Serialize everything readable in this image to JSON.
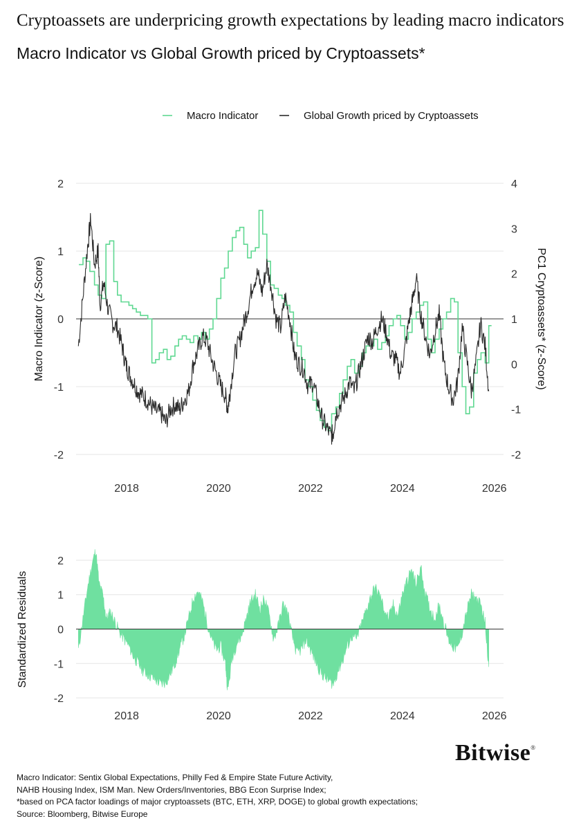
{
  "headline": "Cryptoassets are underpricing growth expectations by leading macro indicators",
  "subtitle": "Macro Indicator vs Global Growth priced by Cryptoassets*",
  "brand": {
    "name": "Bitwise",
    "mark": "®"
  },
  "colors": {
    "macro": "#5fd891",
    "crypto": "#2b2b2b",
    "residual": "#6fe0a0",
    "grid": "#e6e6e6",
    "zero": "#333333"
  },
  "footnotes": [
    "Macro Indicator: Sentix Global Expectations, Philly Fed & Empire State Future Activity,",
    "NAHB Housing Index, ISM Man. New Orders/Inventories, BBG Econ Surprise Index;",
    "*based on PCA factor loadings of major cryptoassets (BTC, ETH, XRP, DOGE) to global growth expectations;",
    "Source: Bloomberg, Bitwise Europe"
  ],
  "chart_data": [
    {
      "type": "line",
      "title": "Macro Indicator vs Global Growth priced by Cryptoassets*",
      "legend": [
        "Macro Indicator",
        "Global Growth priced by Cryptoassets"
      ],
      "legend_position": "top",
      "x_ticks": [
        "2018",
        "2020",
        "2022",
        "2024",
        "2026"
      ],
      "x_tick_values": [
        2018,
        2020,
        2022,
        2024,
        2026
      ],
      "xlim": [
        2016.9,
        2026.2
      ],
      "y_left": {
        "label": "Macro Indicator (z-Score)",
        "ticks": [
          "2",
          "1",
          "0",
          "-1",
          "-2"
        ],
        "tick_values": [
          2,
          1,
          0,
          -1,
          -2
        ],
        "range": [
          -2,
          2
        ]
      },
      "y_right": {
        "label": "PC1 Cryptoassets* (z-Score)",
        "ticks": [
          "4",
          "3",
          "2",
          "1",
          "0",
          "-1",
          "-2"
        ],
        "tick_values": [
          4,
          3,
          2,
          1,
          0,
          -1,
          -2
        ],
        "range": [
          -2,
          4
        ]
      },
      "series": [
        {
          "name": "Macro Indicator",
          "axis": "left",
          "step": true,
          "x": [
            2016.96,
            2017.05,
            2017.12,
            2017.2,
            2017.3,
            2017.38,
            2017.46,
            2017.55,
            2017.63,
            2017.72,
            2017.8,
            2017.88,
            2017.96,
            2018.05,
            2018.13,
            2018.21,
            2018.3,
            2018.38,
            2018.46,
            2018.55,
            2018.63,
            2018.71,
            2018.8,
            2018.88,
            2018.96,
            2019.05,
            2019.13,
            2019.21,
            2019.3,
            2019.38,
            2019.46,
            2019.55,
            2019.63,
            2019.71,
            2019.8,
            2019.88,
            2019.96,
            2020.05,
            2020.13,
            2020.21,
            2020.3,
            2020.38,
            2020.46,
            2020.55,
            2020.63,
            2020.71,
            2020.8,
            2020.88,
            2020.96,
            2021.05,
            2021.13,
            2021.21,
            2021.3,
            2021.38,
            2021.46,
            2021.55,
            2021.63,
            2021.71,
            2021.8,
            2021.88,
            2021.96,
            2022.05,
            2022.13,
            2022.21,
            2022.3,
            2022.38,
            2022.46,
            2022.55,
            2022.63,
            2022.71,
            2022.8,
            2022.88,
            2022.96,
            2023.05,
            2023.13,
            2023.21,
            2023.3,
            2023.38,
            2023.46,
            2023.55,
            2023.63,
            2023.71,
            2023.8,
            2023.88,
            2023.96,
            2024.05,
            2024.13,
            2024.21,
            2024.3,
            2024.38,
            2024.46,
            2024.55,
            2024.63,
            2024.71,
            2024.8,
            2024.88,
            2024.96,
            2025.05,
            2025.13,
            2025.21,
            2025.3,
            2025.38,
            2025.46,
            2025.55,
            2025.63,
            2025.71,
            2025.8,
            2025.88
          ],
          "values": [
            0.8,
            0.9,
            0.85,
            0.7,
            0.5,
            0.35,
            0.3,
            1.1,
            1.15,
            0.55,
            0.35,
            0.25,
            0.25,
            0.2,
            0.15,
            0.1,
            0.05,
            0.05,
            0.0,
            -0.65,
            -0.6,
            -0.5,
            -0.45,
            -0.6,
            -0.55,
            -0.4,
            -0.3,
            -0.25,
            -0.3,
            -0.35,
            -0.25,
            -0.3,
            -0.2,
            -0.3,
            -0.15,
            0.0,
            0.3,
            0.6,
            0.75,
            1.0,
            1.2,
            1.3,
            1.35,
            1.1,
            0.9,
            1.0,
            1.05,
            1.6,
            1.25,
            0.85,
            0.5,
            0.45,
            0.35,
            0.3,
            0.2,
            0.1,
            -0.2,
            -0.4,
            -0.6,
            -0.9,
            -1.0,
            -1.2,
            -1.35,
            -1.5,
            -1.6,
            -1.65,
            -1.4,
            -1.3,
            -1.1,
            -0.9,
            -0.7,
            -0.6,
            -0.8,
            -0.7,
            -0.5,
            -0.4,
            -0.4,
            -0.3,
            -0.45,
            -0.35,
            -0.25,
            -0.1,
            0.0,
            0.05,
            -0.1,
            -0.3,
            -0.2,
            0.0,
            0.1,
            0.2,
            0.25,
            -0.3,
            -0.5,
            -0.3,
            -0.15,
            0.0,
            0.1,
            0.3,
            0.25,
            -0.5,
            -1.0,
            -1.4,
            -1.3,
            -0.8,
            -0.6,
            -0.5,
            -0.65,
            -0.1
          ]
        },
        {
          "name": "Global Growth priced by Cryptoassets",
          "axis": "right",
          "x": [
            2016.95,
            2017.05,
            2017.15,
            2017.22,
            2017.3,
            2017.38,
            2017.42,
            2017.5,
            2017.6,
            2017.7,
            2017.8,
            2017.9,
            2017.98,
            2018.05,
            2018.15,
            2018.25,
            2018.35,
            2018.45,
            2018.55,
            2018.65,
            2018.75,
            2018.85,
            2018.95,
            2019.05,
            2019.15,
            2019.25,
            2019.35,
            2019.45,
            2019.55,
            2019.65,
            2019.75,
            2019.85,
            2019.95,
            2020.05,
            2020.15,
            2020.2,
            2020.25,
            2020.35,
            2020.45,
            2020.55,
            2020.65,
            2020.75,
            2020.85,
            2020.95,
            2021.05,
            2021.15,
            2021.25,
            2021.35,
            2021.45,
            2021.55,
            2021.65,
            2021.75,
            2021.85,
            2021.95,
            2022.05,
            2022.15,
            2022.25,
            2022.35,
            2022.45,
            2022.5,
            2022.55,
            2022.65,
            2022.75,
            2022.85,
            2022.95,
            2023.05,
            2023.15,
            2023.25,
            2023.35,
            2023.45,
            2023.55,
            2023.65,
            2023.75,
            2023.85,
            2023.95,
            2024.05,
            2024.15,
            2024.22,
            2024.3,
            2024.4,
            2024.5,
            2024.6,
            2024.7,
            2024.8,
            2024.9,
            2025.0,
            2025.1,
            2025.2,
            2025.3,
            2025.4,
            2025.5,
            2025.6,
            2025.7,
            2025.8,
            2025.88
          ],
          "values": [
            0.4,
            1.5,
            2.6,
            3.2,
            2.2,
            2.5,
            1.3,
            1.8,
            1.2,
            0.9,
            0.8,
            0.4,
            0.0,
            -0.2,
            -0.4,
            -0.6,
            -0.7,
            -0.8,
            -0.95,
            -1.05,
            -1.1,
            -1.3,
            -1.0,
            -0.9,
            -1.0,
            -0.8,
            -0.6,
            0.0,
            0.3,
            0.6,
            0.5,
            0.1,
            -0.2,
            -0.5,
            -0.7,
            -1.0,
            -0.6,
            0.2,
            0.5,
            0.9,
            1.3,
            1.8,
            2.0,
            1.6,
            2.2,
            1.7,
            1.0,
            0.8,
            1.5,
            1.0,
            0.2,
            0.0,
            -0.1,
            -0.5,
            -0.4,
            -0.8,
            -1.2,
            -1.4,
            -1.6,
            -1.5,
            -1.1,
            -0.9,
            -0.7,
            -0.4,
            -0.6,
            -0.2,
            0.2,
            0.6,
            0.5,
            0.8,
            1.0,
            0.7,
            0.2,
            0.1,
            -0.2,
            0.3,
            1.0,
            1.4,
            1.9,
            1.1,
            0.6,
            0.2,
            0.7,
            1.1,
            0.0,
            -0.5,
            -0.8,
            -0.4,
            0.8,
            0.1,
            -0.6,
            0.0,
            0.9,
            0.4,
            -0.6
          ]
        }
      ]
    },
    {
      "type": "area",
      "title": "Standardized Residuals",
      "ylabel": "Standardized Residuals",
      "x_ticks": [
        "2018",
        "2020",
        "2022",
        "2024",
        "2026"
      ],
      "x_tick_values": [
        2018,
        2020,
        2022,
        2024,
        2026
      ],
      "xlim": [
        2016.9,
        2026.2
      ],
      "y_ticks": [
        "2",
        "1",
        "0",
        "-1",
        "-2"
      ],
      "y_tick_values": [
        2,
        1,
        0,
        -1,
        -2
      ],
      "ylim": [
        -2.2,
        2.2
      ],
      "series": [
        {
          "name": "Standardized Residuals",
          "x": [
            2016.95,
            2017.05,
            2017.15,
            2017.25,
            2017.33,
            2017.4,
            2017.48,
            2017.56,
            2017.65,
            2017.75,
            2017.85,
            2017.95,
            2018.05,
            2018.15,
            2018.25,
            2018.35,
            2018.45,
            2018.55,
            2018.65,
            2018.75,
            2018.85,
            2018.95,
            2019.05,
            2019.15,
            2019.25,
            2019.35,
            2019.45,
            2019.55,
            2019.65,
            2019.75,
            2019.85,
            2019.95,
            2020.05,
            2020.15,
            2020.2,
            2020.3,
            2020.4,
            2020.5,
            2020.6,
            2020.7,
            2020.8,
            2020.9,
            2021.0,
            2021.1,
            2021.2,
            2021.3,
            2021.4,
            2021.5,
            2021.6,
            2021.7,
            2021.8,
            2021.9,
            2022.0,
            2022.1,
            2022.2,
            2022.3,
            2022.4,
            2022.5,
            2022.6,
            2022.7,
            2022.8,
            2022.9,
            2023.0,
            2023.1,
            2023.2,
            2023.3,
            2023.4,
            2023.5,
            2023.6,
            2023.7,
            2023.8,
            2023.9,
            2024.0,
            2024.1,
            2024.2,
            2024.3,
            2024.4,
            2024.5,
            2024.6,
            2024.7,
            2024.8,
            2024.9,
            2025.0,
            2025.1,
            2025.2,
            2025.3,
            2025.4,
            2025.5,
            2025.6,
            2025.7,
            2025.8,
            2025.88
          ],
          "values": [
            -0.6,
            0.3,
            1.2,
            1.9,
            2.3,
            1.3,
            1.0,
            0.3,
            0.5,
            0.2,
            -0.1,
            -0.3,
            -0.5,
            -0.8,
            -1.0,
            -1.2,
            -1.3,
            -1.4,
            -1.5,
            -1.6,
            -1.55,
            -1.3,
            -1.0,
            -0.6,
            -0.2,
            0.3,
            0.9,
            1.1,
            0.8,
            0.2,
            -0.3,
            -0.6,
            -0.5,
            -1.0,
            -1.8,
            -0.8,
            -0.4,
            -0.2,
            0.3,
            0.8,
            1.0,
            0.6,
            0.9,
            0.4,
            -0.3,
            0.1,
            0.7,
            0.5,
            -0.2,
            -0.7,
            -0.6,
            -0.3,
            -0.6,
            -0.9,
            -1.2,
            -1.4,
            -1.5,
            -1.6,
            -1.2,
            -0.9,
            -0.5,
            -0.2,
            -0.3,
            0.1,
            0.5,
            0.9,
            1.2,
            1.0,
            0.6,
            0.3,
            0.7,
            0.4,
            1.0,
            1.4,
            1.7,
            1.3,
            1.8,
            1.0,
            0.6,
            0.3,
            0.7,
            0.2,
            -0.3,
            -0.5,
            -0.6,
            -0.1,
            0.5,
            1.0,
            0.9,
            0.7,
            0.2,
            -1.1
          ]
        }
      ]
    }
  ]
}
